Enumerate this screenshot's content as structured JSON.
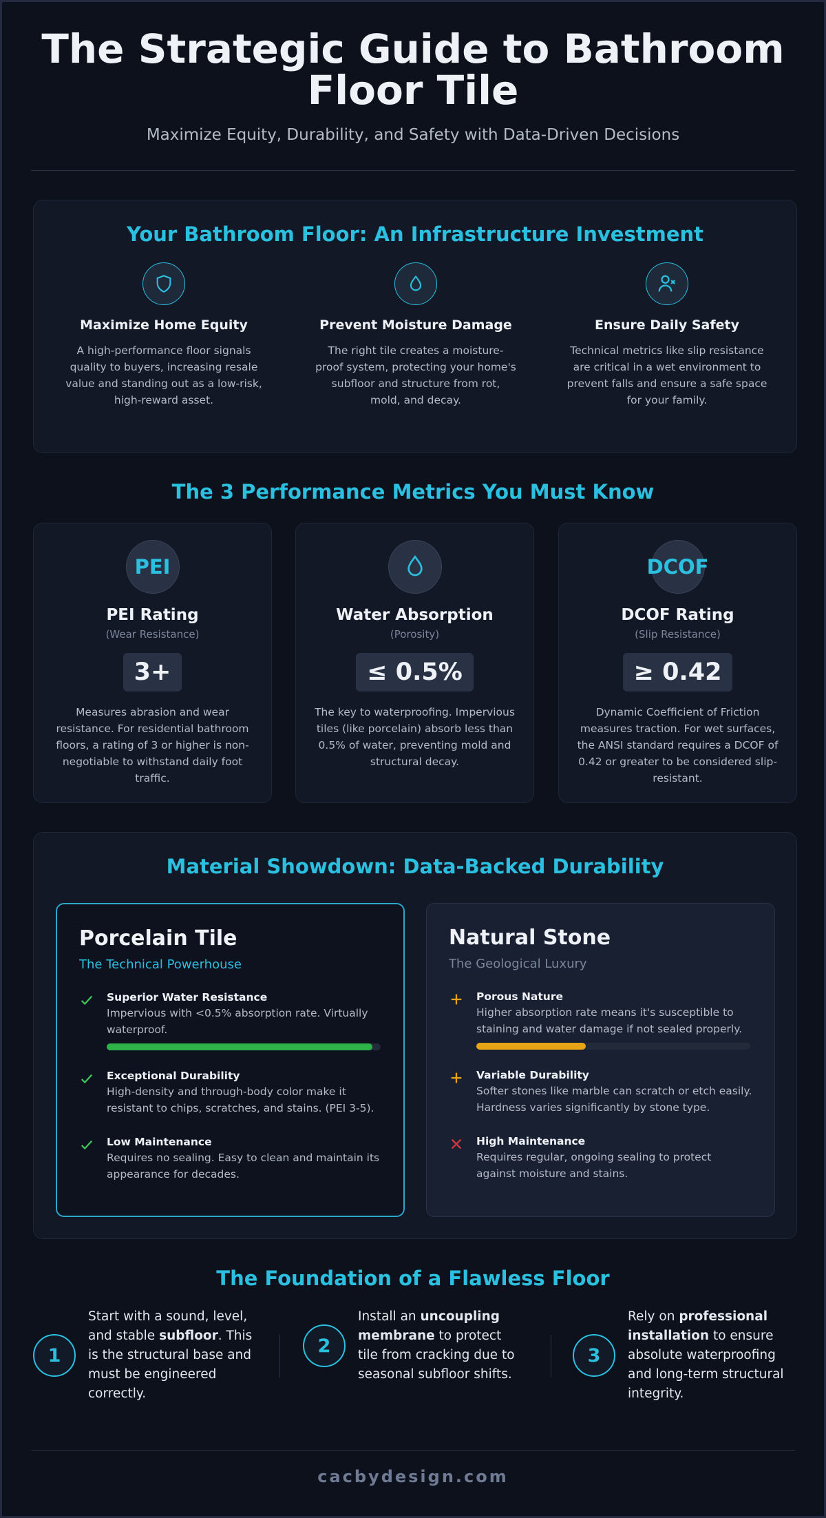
{
  "header": {
    "title": "The Strategic Guide to Bathroom Floor Tile",
    "subtitle": "Maximize Equity, Durability, and Safety with Data-Driven Decisions"
  },
  "investment": {
    "heading": "Your Bathroom Floor: An Infrastructure Investment",
    "features": [
      {
        "title": "Maximize Home Equity",
        "text": "A high-performance floor signals quality to buyers, increasing resale value and standing out as a low-risk, high-reward asset."
      },
      {
        "title": "Prevent Moisture Damage",
        "text": "The right tile creates a moisture-proof system, protecting your home's subfloor and structure from rot, mold, and decay."
      },
      {
        "title": "Ensure Daily Safety",
        "text": "Technical metrics like slip resistance are critical in a wet environment to prevent falls and ensure a safe space for your family."
      }
    ]
  },
  "metrics": {
    "heading": "The 3 Performance Metrics You Must Know",
    "cards": [
      {
        "badge": "PEI",
        "title": "PEI Rating",
        "subtitle": "(Wear Resistance)",
        "value": "3+",
        "text": "Measures abrasion and wear resistance. For residential bathroom floors, a rating of 3 or higher is non-negotiable to withstand daily foot traffic."
      },
      {
        "title": "Water Absorption",
        "subtitle": "(Porosity)",
        "value": "≤ 0.5%",
        "text": "The key to waterproofing. Impervious tiles (like porcelain) absorb less than 0.5% of water, preventing mold and structural decay."
      },
      {
        "badge": "DCOF",
        "title": "DCOF Rating",
        "subtitle": "(Slip Resistance)",
        "value": "≥ 0.42",
        "text": "Dynamic Coefficient of Friction measures traction. For wet surfaces, the ANSI standard requires a DCOF of 0.42 or greater to be considered slip-resistant."
      }
    ]
  },
  "showdown": {
    "heading": "Material Showdown: Data-Backed Durability",
    "materials": [
      {
        "name": "Porcelain Tile",
        "tagline": "The Technical Powerhouse",
        "meter": 97,
        "items": [
          {
            "title": "Superior Water Resistance",
            "text": "Impervious with <0.5% absorption rate. Virtually waterproof."
          },
          {
            "title": "Exceptional Durability",
            "text": "High-density and through-body color make it resistant to chips, scratches, and stains. (PEI 3-5)."
          },
          {
            "title": "Low Maintenance",
            "text": "Requires no sealing. Easy to clean and maintain its appearance for decades."
          }
        ]
      },
      {
        "name": "Natural Stone",
        "tagline": "The Geological Luxury",
        "meter": 40,
        "items": [
          {
            "title": "Porous Nature",
            "text": "Higher absorption rate means it's susceptible to staining and water damage if not sealed properly."
          },
          {
            "title": "Variable Durability",
            "text": "Softer stones like marble can scratch or etch easily. Hardness varies significantly by stone type."
          },
          {
            "title": "High Maintenance",
            "text": "Requires regular, ongoing sealing to protect against moisture and stains."
          }
        ]
      }
    ]
  },
  "foundation": {
    "heading": "The Foundation of a Flawless Floor",
    "steps": [
      {
        "number": "1",
        "parts": [
          {
            "text": "Start with a sound, level, and stable "
          },
          {
            "text": "subfloor",
            "bold": true
          },
          {
            "text": ". This is the structural base and must be engineered correctly."
          }
        ]
      },
      {
        "number": "2",
        "parts": [
          {
            "text": "Install an "
          },
          {
            "text": "uncoupling membrane",
            "bold": true
          },
          {
            "text": " to protect tile from cracking due to seasonal subfloor shifts."
          }
        ]
      },
      {
        "number": "3",
        "parts": [
          {
            "text": "Rely on "
          },
          {
            "text": "professional installation",
            "bold": true
          },
          {
            "text": " to ensure absolute waterproofing and long-term structural integrity."
          }
        ]
      }
    ]
  },
  "footer": {
    "site": "cacbydesign.com"
  }
}
